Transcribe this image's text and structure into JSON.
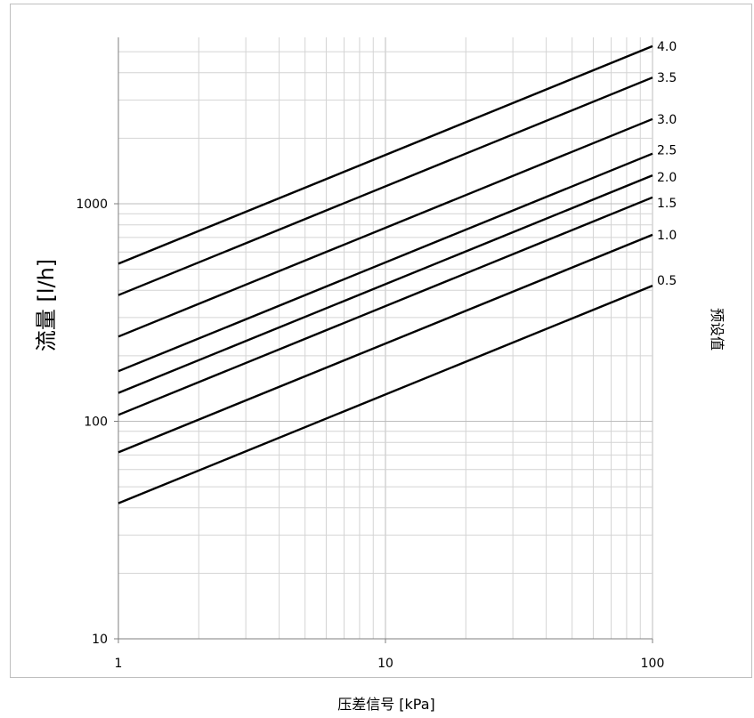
{
  "chart_data": {
    "type": "line",
    "x_scale": "log",
    "y_scale": "log",
    "xlabel": "压差信号 [kPa]",
    "ylabel": "流量 [l/h]",
    "series_axis_title": "预设值",
    "xlim": [
      1,
      100
    ],
    "ylim": [
      10,
      6000
    ],
    "x_ticks": [
      1,
      10,
      100
    ],
    "x_tick_labels": [
      "1",
      "10",
      "100"
    ],
    "y_ticks": [
      10,
      100,
      1000
    ],
    "y_tick_labels": [
      "10",
      "100",
      "1000"
    ],
    "grid": true,
    "series": [
      {
        "name": "4.0",
        "x": [
          1,
          100
        ],
        "y": [
          530,
          5300
        ]
      },
      {
        "name": "3.5",
        "x": [
          1,
          100
        ],
        "y": [
          380,
          3800
        ]
      },
      {
        "name": "3.0",
        "x": [
          1,
          100
        ],
        "y": [
          245,
          2450
        ]
      },
      {
        "name": "2.5",
        "x": [
          1,
          100
        ],
        "y": [
          170,
          1700
        ]
      },
      {
        "name": "2.0",
        "x": [
          1,
          100
        ],
        "y": [
          135,
          1350
        ]
      },
      {
        "name": "1.5",
        "x": [
          1,
          100
        ],
        "y": [
          107,
          1070
        ]
      },
      {
        "name": "1.0",
        "x": [
          1,
          100
        ],
        "y": [
          72,
          720
        ]
      },
      {
        "name": "0.5",
        "x": [
          1,
          100
        ],
        "y": [
          42,
          420
        ]
      }
    ]
  }
}
